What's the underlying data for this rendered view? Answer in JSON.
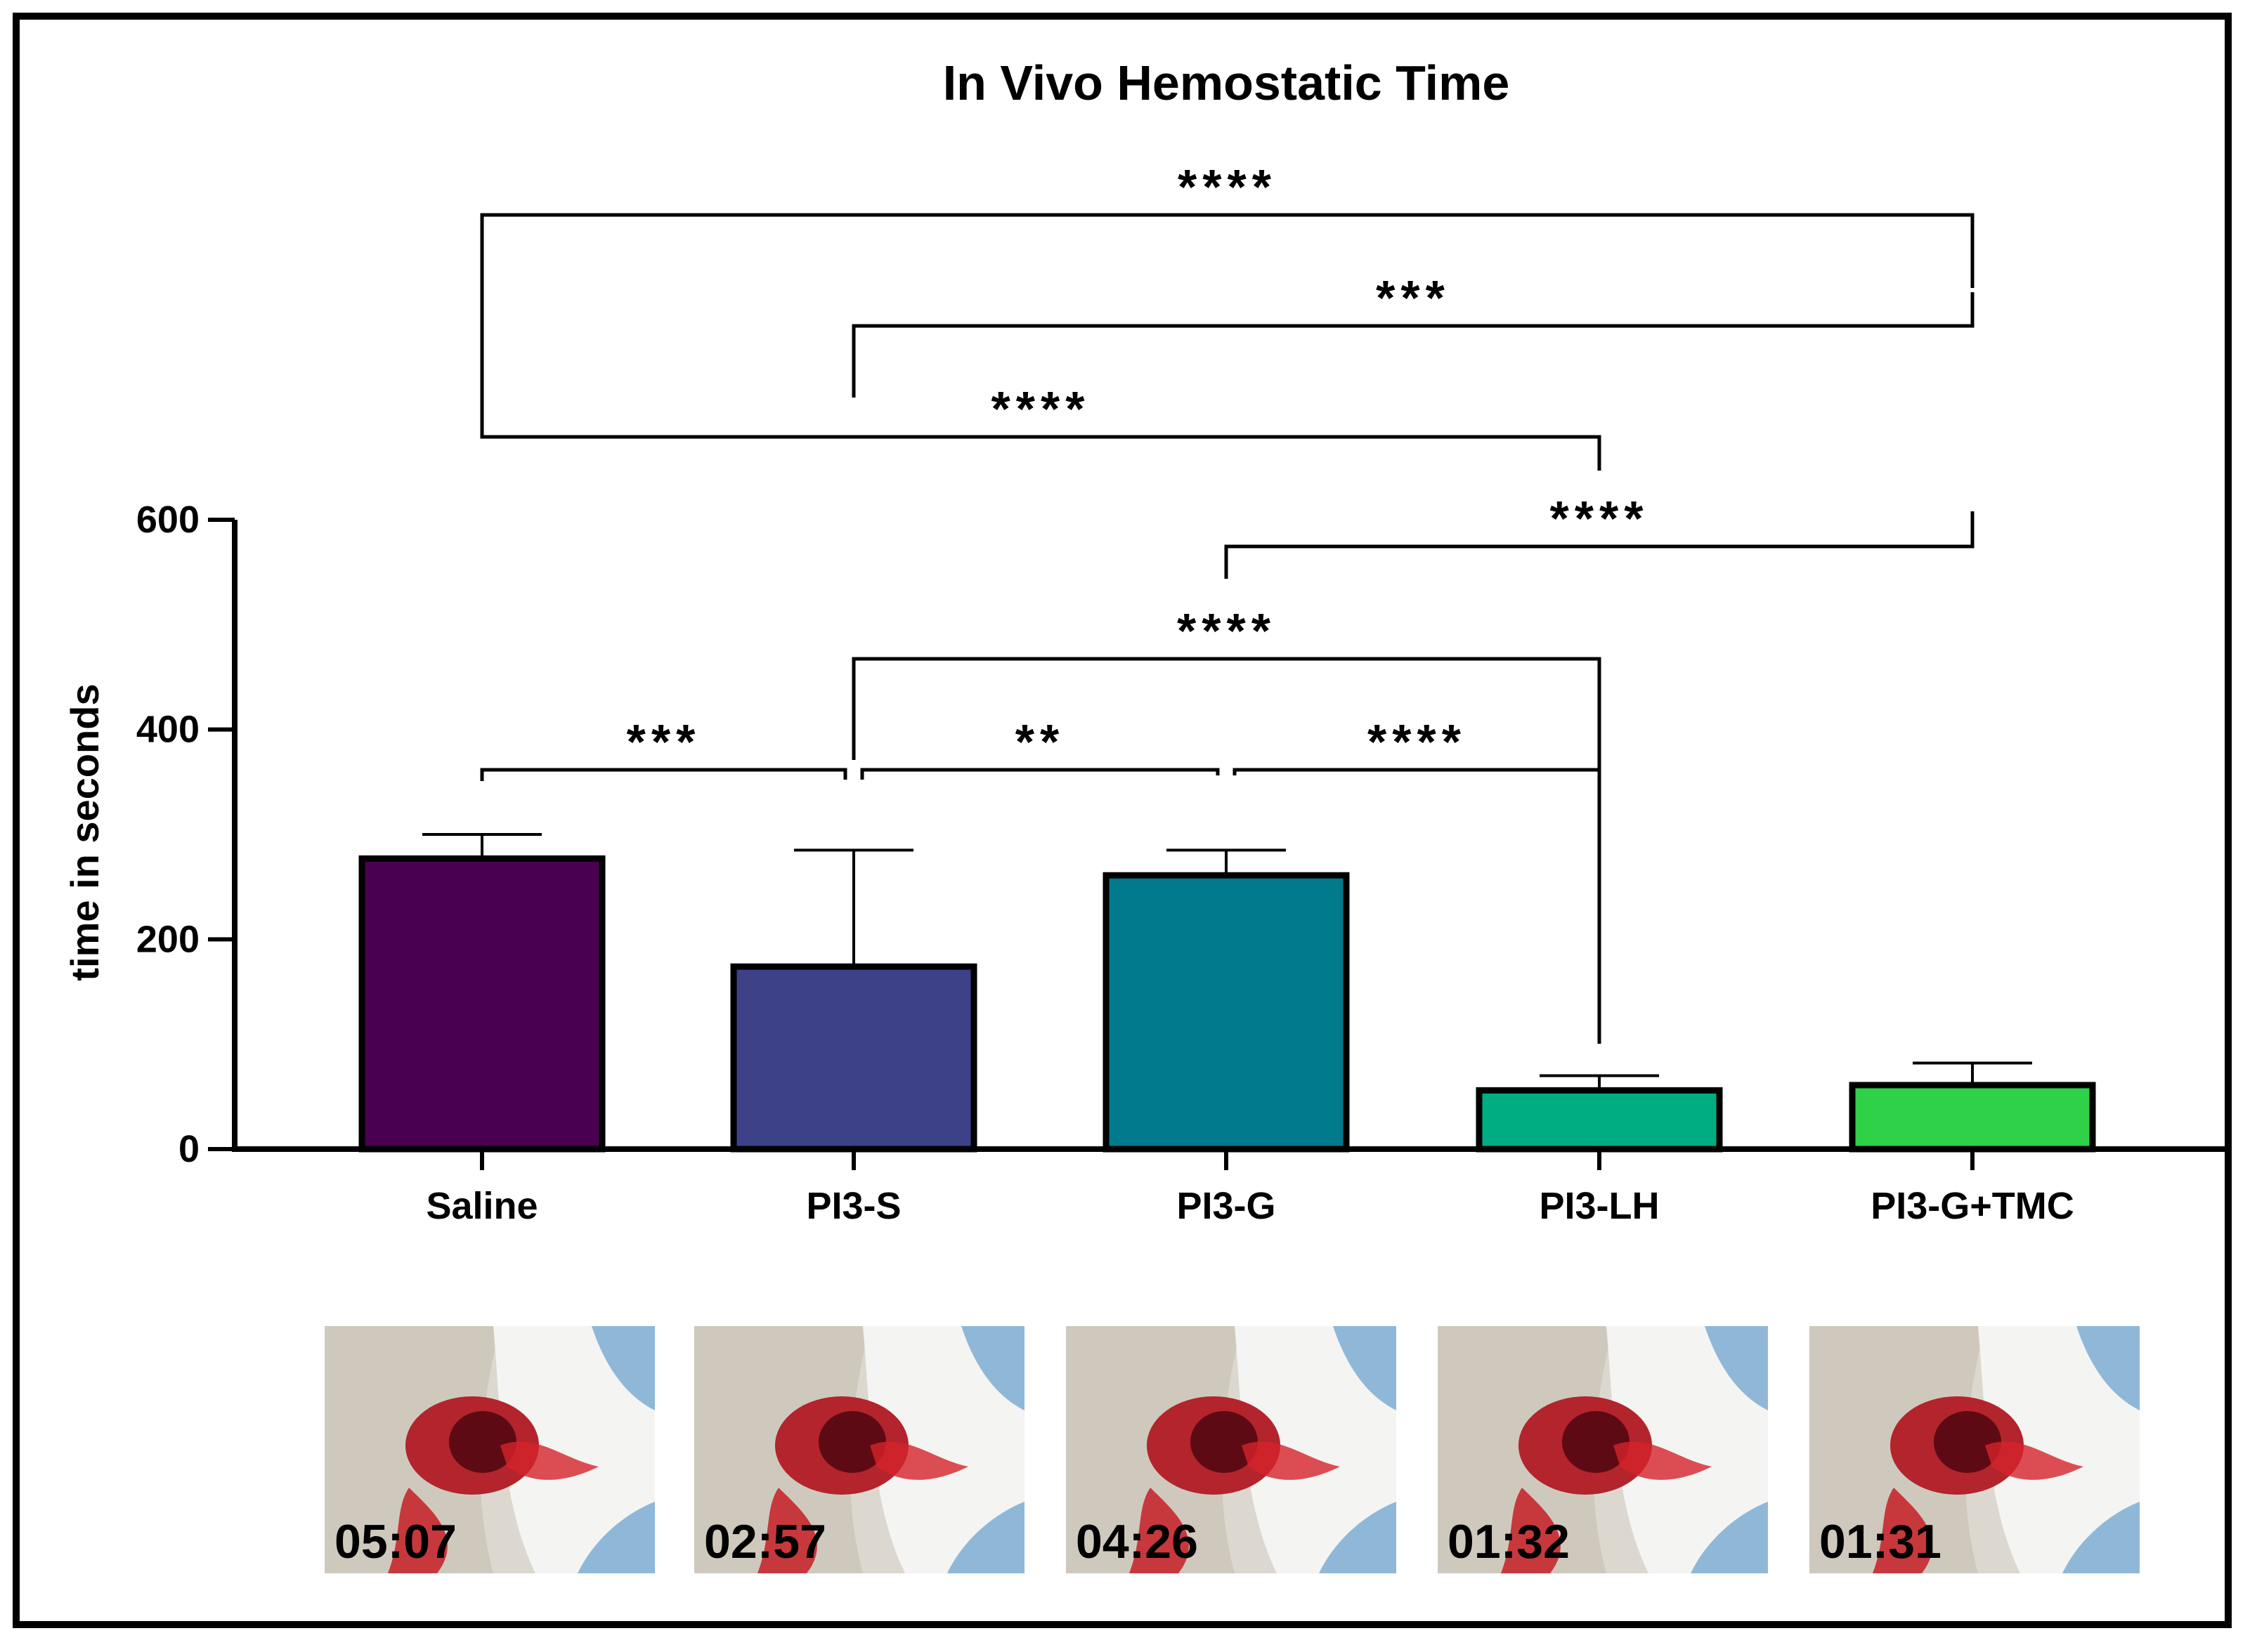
{
  "chart_data": {
    "type": "bar",
    "title": "In Vivo Hemostatic Time",
    "xlabel": "",
    "ylabel": "time in seconds",
    "ylim": [
      0,
      600
    ],
    "yticks": [
      0,
      200,
      400,
      600
    ],
    "categories": [
      "Saline",
      "PI3-S",
      "PI3-G",
      "PI3-LH",
      "PI3-G+TMC"
    ],
    "values": [
      277,
      174,
      261,
      56,
      61
    ],
    "errors": [
      23,
      111,
      24,
      14,
      21
    ],
    "colors": [
      "#4a0050",
      "#3d4187",
      "#007a8c",
      "#00ad82",
      "#2ed147"
    ],
    "grid": false,
    "legend": "none",
    "significance": [
      {
        "from": 0,
        "to": 4,
        "label": "****"
      },
      {
        "from": 1,
        "to": 4,
        "label": "***"
      },
      {
        "from": 0,
        "to": 3,
        "label": "****"
      },
      {
        "from": 2,
        "to": 4,
        "label": "****"
      },
      {
        "from": 1,
        "to": 3,
        "label": "****"
      },
      {
        "from": 0,
        "to": 1,
        "label": "***"
      },
      {
        "from": 1,
        "to": 2,
        "label": "**"
      },
      {
        "from": 2,
        "to": 3,
        "label": "****"
      }
    ]
  },
  "photos": [
    {
      "icon": "surgical-wound-photo-icon",
      "time": "05:07"
    },
    {
      "icon": "surgical-wound-photo-icon",
      "time": "02:57"
    },
    {
      "icon": "surgical-wound-photo-icon",
      "time": "04:26"
    },
    {
      "icon": "surgical-wound-photo-icon",
      "time": "01:32"
    },
    {
      "icon": "surgical-wound-photo-icon",
      "time": "01:31"
    }
  ]
}
